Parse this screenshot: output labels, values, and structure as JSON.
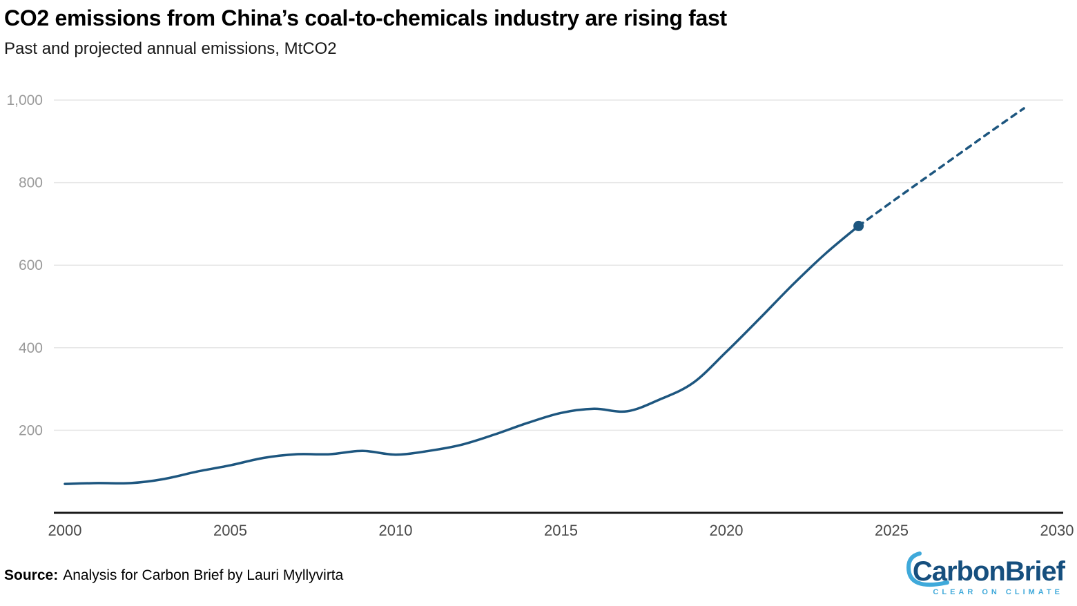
{
  "header": {
    "title": "CO2 emissions from China’s coal-to-chemicals industry are rising fast",
    "subtitle": "Past and projected annual emissions, MtCO2"
  },
  "footer": {
    "source_label": "Source:",
    "source_text": "Analysis for Carbon Brief by Lauri Myllyvirta",
    "logo_text": "CarbonBrief",
    "logo_tagline": "CLEAR ON CLIMATE"
  },
  "colors": {
    "line": "#1d567f",
    "grid": "#e6e6e6",
    "axis": "#1a1a1a",
    "y_tick_label": "#9a9a9a",
    "x_tick_label": "#4a4a4a",
    "logo_dark": "#164f7e",
    "logo_light": "#3fa9da",
    "background": "#ffffff"
  },
  "chart_data": {
    "type": "line",
    "title": "CO2 emissions from China’s coal-to-chemicals industry are rising fast",
    "subtitle": "Past and projected annual emissions, MtCO2",
    "xlabel": "",
    "ylabel": "MtCO2",
    "xlim": [
      2000,
      2030
    ],
    "ylim": [
      0,
      1000
    ],
    "grid": "horizontal",
    "legend": "none",
    "x_ticks": [
      2000,
      2005,
      2010,
      2015,
      2020,
      2025,
      2030
    ],
    "y_ticks": [
      {
        "value": 200,
        "label": "200"
      },
      {
        "value": 400,
        "label": "400"
      },
      {
        "value": 600,
        "label": "600"
      },
      {
        "value": 800,
        "label": "800"
      },
      {
        "value": 1000,
        "label": "1,000"
      }
    ],
    "series": [
      {
        "name": "historical",
        "style": "solid",
        "x": [
          2000,
          2001,
          2002,
          2003,
          2004,
          2005,
          2006,
          2007,
          2008,
          2009,
          2010,
          2011,
          2012,
          2013,
          2014,
          2015,
          2016,
          2017,
          2018,
          2019,
          2020,
          2021,
          2022,
          2023,
          2024
        ],
        "values": [
          70,
          72,
          72,
          82,
          100,
          115,
          133,
          142,
          142,
          150,
          141,
          150,
          165,
          190,
          218,
          242,
          252,
          246,
          275,
          315,
          390,
          470,
          552,
          628,
          695
        ]
      },
      {
        "name": "projected",
        "style": "dashed",
        "x": [
          2024,
          2025,
          2026,
          2027,
          2028,
          2029
        ],
        "values": [
          695,
          753,
          810,
          867,
          924,
          980
        ]
      }
    ],
    "endpoint": {
      "x": 2024,
      "value": 695
    }
  }
}
